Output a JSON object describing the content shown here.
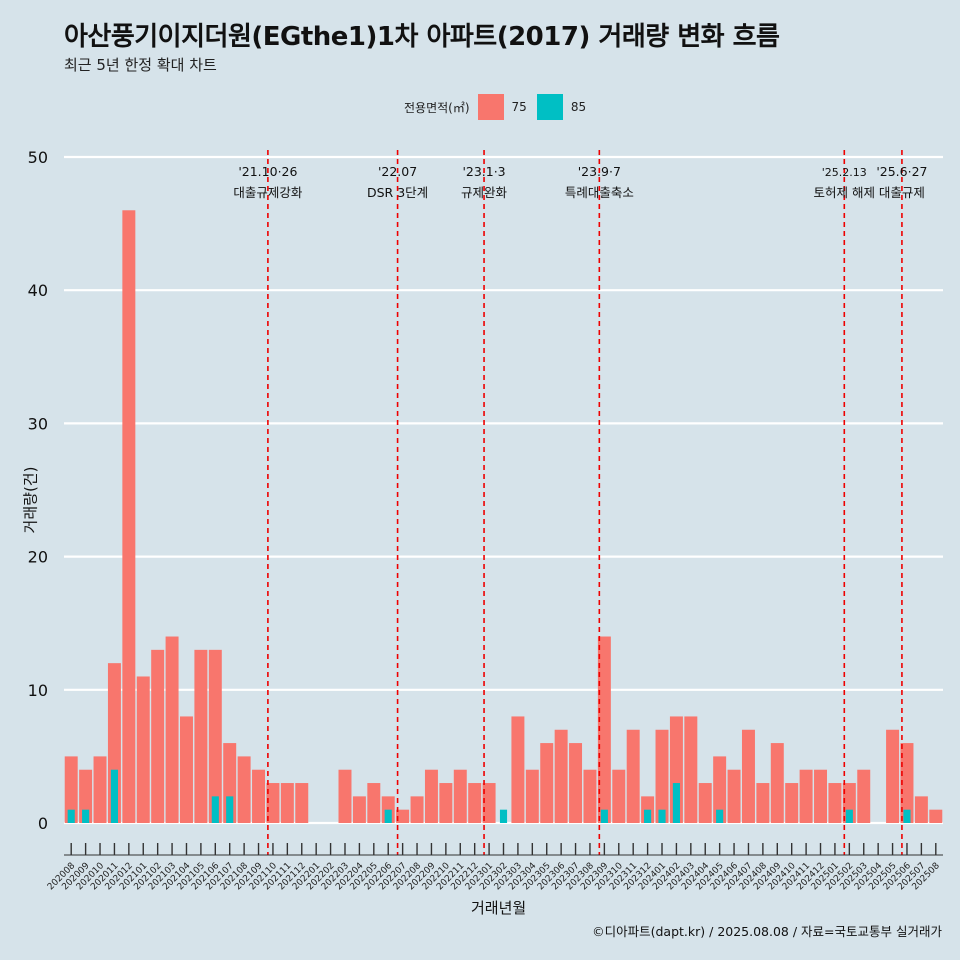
{
  "title": "아산풍기이지더원(EGthe1)1차 아파트(2017) 거래량 변화 흐름",
  "subtitle": "최근 5년 한정 확대 차트",
  "caption": "©디아파트(dapt.kr) / 2025.08.08 / 자료=국토교통부 실거래가",
  "legend": {
    "title": "전용면적(㎡)",
    "items": [
      {
        "label": "75",
        "color": "#f8766d"
      },
      {
        "label": "85",
        "color": "#00bfc4"
      }
    ]
  },
  "chart_data": {
    "type": "bar",
    "xlabel": "거래년월",
    "ylabel": "거래량(건)",
    "ylim": [
      -2.5,
      51
    ],
    "yticks": [
      0,
      10,
      20,
      30,
      40,
      50
    ],
    "grid": true,
    "legend_position": "top",
    "categories": [
      "202008",
      "202009",
      "202010",
      "202011",
      "202012",
      "202101",
      "202102",
      "202103",
      "202104",
      "202105",
      "202106",
      "202107",
      "202108",
      "202109",
      "202110",
      "202111",
      "202112",
      "202201",
      "202202",
      "202203",
      "202204",
      "202205",
      "202206",
      "202207",
      "202208",
      "202209",
      "202210",
      "202211",
      "202212",
      "202301",
      "202302",
      "202303",
      "202304",
      "202305",
      "202306",
      "202307",
      "202308",
      "202309",
      "202310",
      "202311",
      "202312",
      "202401",
      "202402",
      "202403",
      "202404",
      "202405",
      "202406",
      "202407",
      "202408",
      "202409",
      "202410",
      "202411",
      "202412",
      "202501",
      "202502",
      "202503",
      "202504",
      "202505",
      "202506",
      "202507",
      "202508"
    ],
    "series": [
      {
        "name": "75",
        "color": "#f8766d",
        "values": [
          5,
          4,
          5,
          12,
          46,
          11,
          13,
          14,
          8,
          13,
          13,
          6,
          5,
          4,
          3,
          3,
          3,
          0,
          0,
          4,
          2,
          3,
          2,
          1,
          2,
          4,
          3,
          4,
          3,
          3,
          0,
          8,
          4,
          6,
          7,
          6,
          4,
          14,
          4,
          7,
          2,
          7,
          8,
          8,
          3,
          5,
          4,
          7,
          3,
          6,
          3,
          4,
          4,
          3,
          3,
          4,
          0,
          7,
          6,
          2,
          1
        ]
      },
      {
        "name": "85",
        "color": "#00bfc4",
        "values": [
          1,
          1,
          0,
          4,
          0,
          0,
          0,
          0,
          0,
          0,
          2,
          2,
          0,
          0,
          0,
          0,
          0,
          0,
          0,
          0,
          0,
          0,
          1,
          0,
          0,
          0,
          0,
          0,
          0,
          0,
          1,
          0,
          0,
          0,
          0,
          0,
          0,
          1,
          0,
          0,
          1,
          1,
          3,
          0,
          0,
          1,
          0,
          0,
          0,
          0,
          0,
          0,
          0,
          0,
          1,
          0,
          0,
          0,
          1,
          0,
          0
        ]
      }
    ],
    "events": [
      {
        "date": "202110",
        "label1": "'21.10·26",
        "label2": "대출규제강화"
      },
      {
        "date": "202207",
        "label1": "'22.07",
        "label2": "DSR 3단계"
      },
      {
        "date": "202301",
        "label1": "'23.1·3",
        "label2": "규제완화"
      },
      {
        "date": "202309",
        "label1": "'23.9·7",
        "label2": "특례대출축소"
      },
      {
        "date": "202502",
        "label1": "'25.2.13",
        "label2": "토허제 해제"
      },
      {
        "date": "202506",
        "label1": "'25.6·27",
        "label2": "대출규제"
      }
    ]
  }
}
